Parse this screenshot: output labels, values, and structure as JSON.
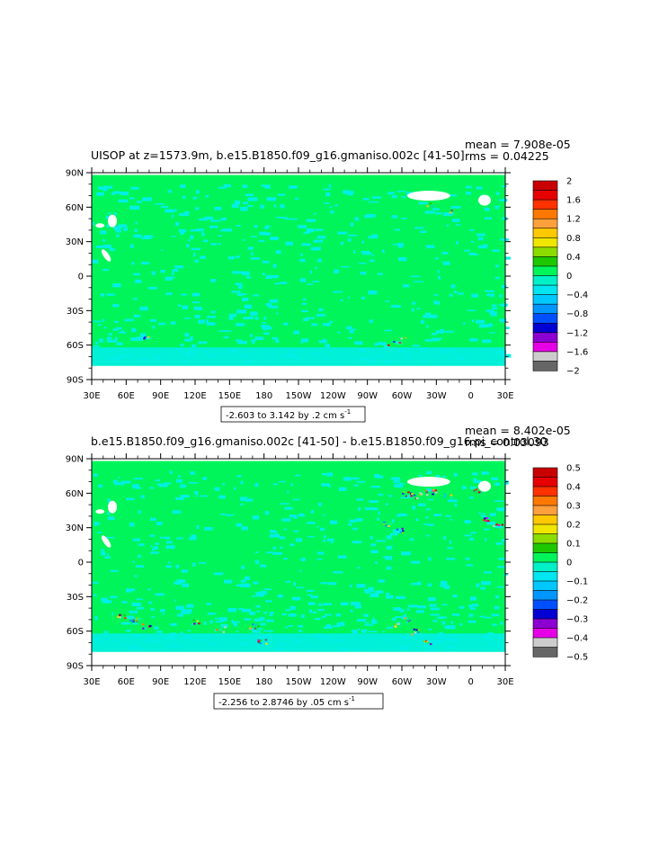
{
  "chart_data": [
    {
      "type": "heatmap",
      "title": "UISOP at z=1573.9m, b.e15.B1850.f09_g16.gmaniso.002c [41-50]",
      "stats": {
        "mean": "mean = 7.908e-05",
        "rms": "rms = 0.04225"
      },
      "range_label": "-2.603 to 3.142 by .2 cm s",
      "range_exp": "-1",
      "x_ticks": [
        "30E",
        "60E",
        "90E",
        "120E",
        "150E",
        "180",
        "150W",
        "120W",
        "90W",
        "60W",
        "30W",
        "0",
        "30E"
      ],
      "y_ticks": [
        "90N",
        "60N",
        "30N",
        "0",
        "30S",
        "60S",
        "90S"
      ],
      "colorbar": {
        "labels": [
          "2",
          "1.6",
          "1.2",
          "0.8",
          "0.4",
          "0",
          "-0.4",
          "-0.8",
          "-1.2",
          "-1.6",
          "-2"
        ],
        "colors": [
          "#c80000",
          "#e60000",
          "#ff3200",
          "#ff7800",
          "#ffa03c",
          "#ffc800",
          "#f0e600",
          "#8cdc00",
          "#1ec800",
          "#00f55a",
          "#00f0c8",
          "#00e6f0",
          "#00c8ff",
          "#0096ff",
          "#0050ff",
          "#0000d2",
          "#8c00d2",
          "#e600e6",
          "#cccccc",
          "#666666"
        ]
      },
      "dominant": {
        "zero_band": "#00f55a",
        "neg_band": "#00f0e6"
      }
    },
    {
      "type": "heatmap",
      "title": "b.e15.B1850.f09_g16.gmaniso.002c [41-50] - b.e15.B1850.f09_g16.pi_control.30",
      "stats": {
        "mean": "mean = 8.402e-05",
        "rms": "rms = 0.03093"
      },
      "range_label": "-2.256 to 2.8746 by .05 cm s",
      "range_exp": "-1",
      "x_ticks": [
        "30E",
        "60E",
        "90E",
        "120E",
        "150E",
        "180",
        "150W",
        "120W",
        "90W",
        "60W",
        "30W",
        "0",
        "30E"
      ],
      "y_ticks": [
        "90N",
        "60N",
        "30N",
        "0",
        "30S",
        "60S",
        "90S"
      ],
      "colorbar": {
        "labels": [
          "0.5",
          "0.4",
          "0.3",
          "0.2",
          "0.1",
          "0",
          "-0.1",
          "-0.2",
          "-0.3",
          "-0.4",
          "-0.5"
        ],
        "colors": [
          "#c80000",
          "#e60000",
          "#ff3200",
          "#ff7800",
          "#ffa03c",
          "#ffc800",
          "#f0e600",
          "#8cdc00",
          "#1ec800",
          "#00f55a",
          "#00f0c8",
          "#00e6f0",
          "#00c8ff",
          "#0096ff",
          "#0050ff",
          "#0000d2",
          "#8c00d2",
          "#e600e6",
          "#cccccc",
          "#666666"
        ]
      },
      "dominant": {
        "zero_band": "#00f55a",
        "neg_band": "#00f0e6"
      }
    }
  ]
}
